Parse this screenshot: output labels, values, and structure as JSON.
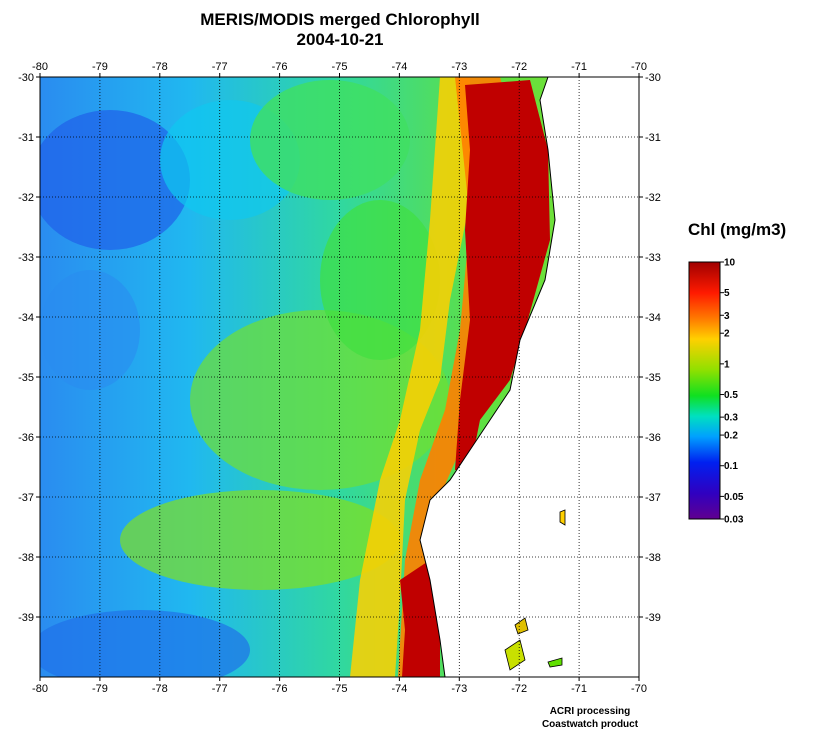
{
  "title": {
    "line1": "MERIS/MODIS merged Chlorophyll",
    "line2": "2004-10-21"
  },
  "map": {
    "lon_ticks": [
      "-80",
      "-79",
      "-78",
      "-77",
      "-76",
      "-75",
      "-74",
      "-73",
      "-72",
      "-71",
      "-70"
    ],
    "lat_ticks": [
      "-30",
      "-31",
      "-32",
      "-33",
      "-34",
      "-35",
      "-36",
      "-37",
      "-38",
      "-39"
    ],
    "lon_range": [
      -80,
      -70
    ],
    "lat_range": [
      -30,
      -40
    ],
    "grid": "dotted",
    "land_color": "#ffffff",
    "coastline_color": "#000000"
  },
  "colorbar": {
    "title": "Chl (mg/m3)",
    "labels": [
      "10",
      "5",
      "3",
      "2",
      "1",
      "0.5",
      "0.3",
      "0.2",
      "0.1",
      "0.05",
      "0.03"
    ],
    "scale": "log",
    "range": [
      0.03,
      10
    ],
    "colors": [
      "#b00000",
      "#ff2000",
      "#ff8000",
      "#ffe000",
      "#60e000",
      "#00e060",
      "#00e0e0",
      "#0080ff",
      "#0000e0",
      "#3000c0",
      "#6000a0"
    ]
  },
  "credits": {
    "line1": "ACRI processing",
    "line2": "Coastwatch product"
  }
}
